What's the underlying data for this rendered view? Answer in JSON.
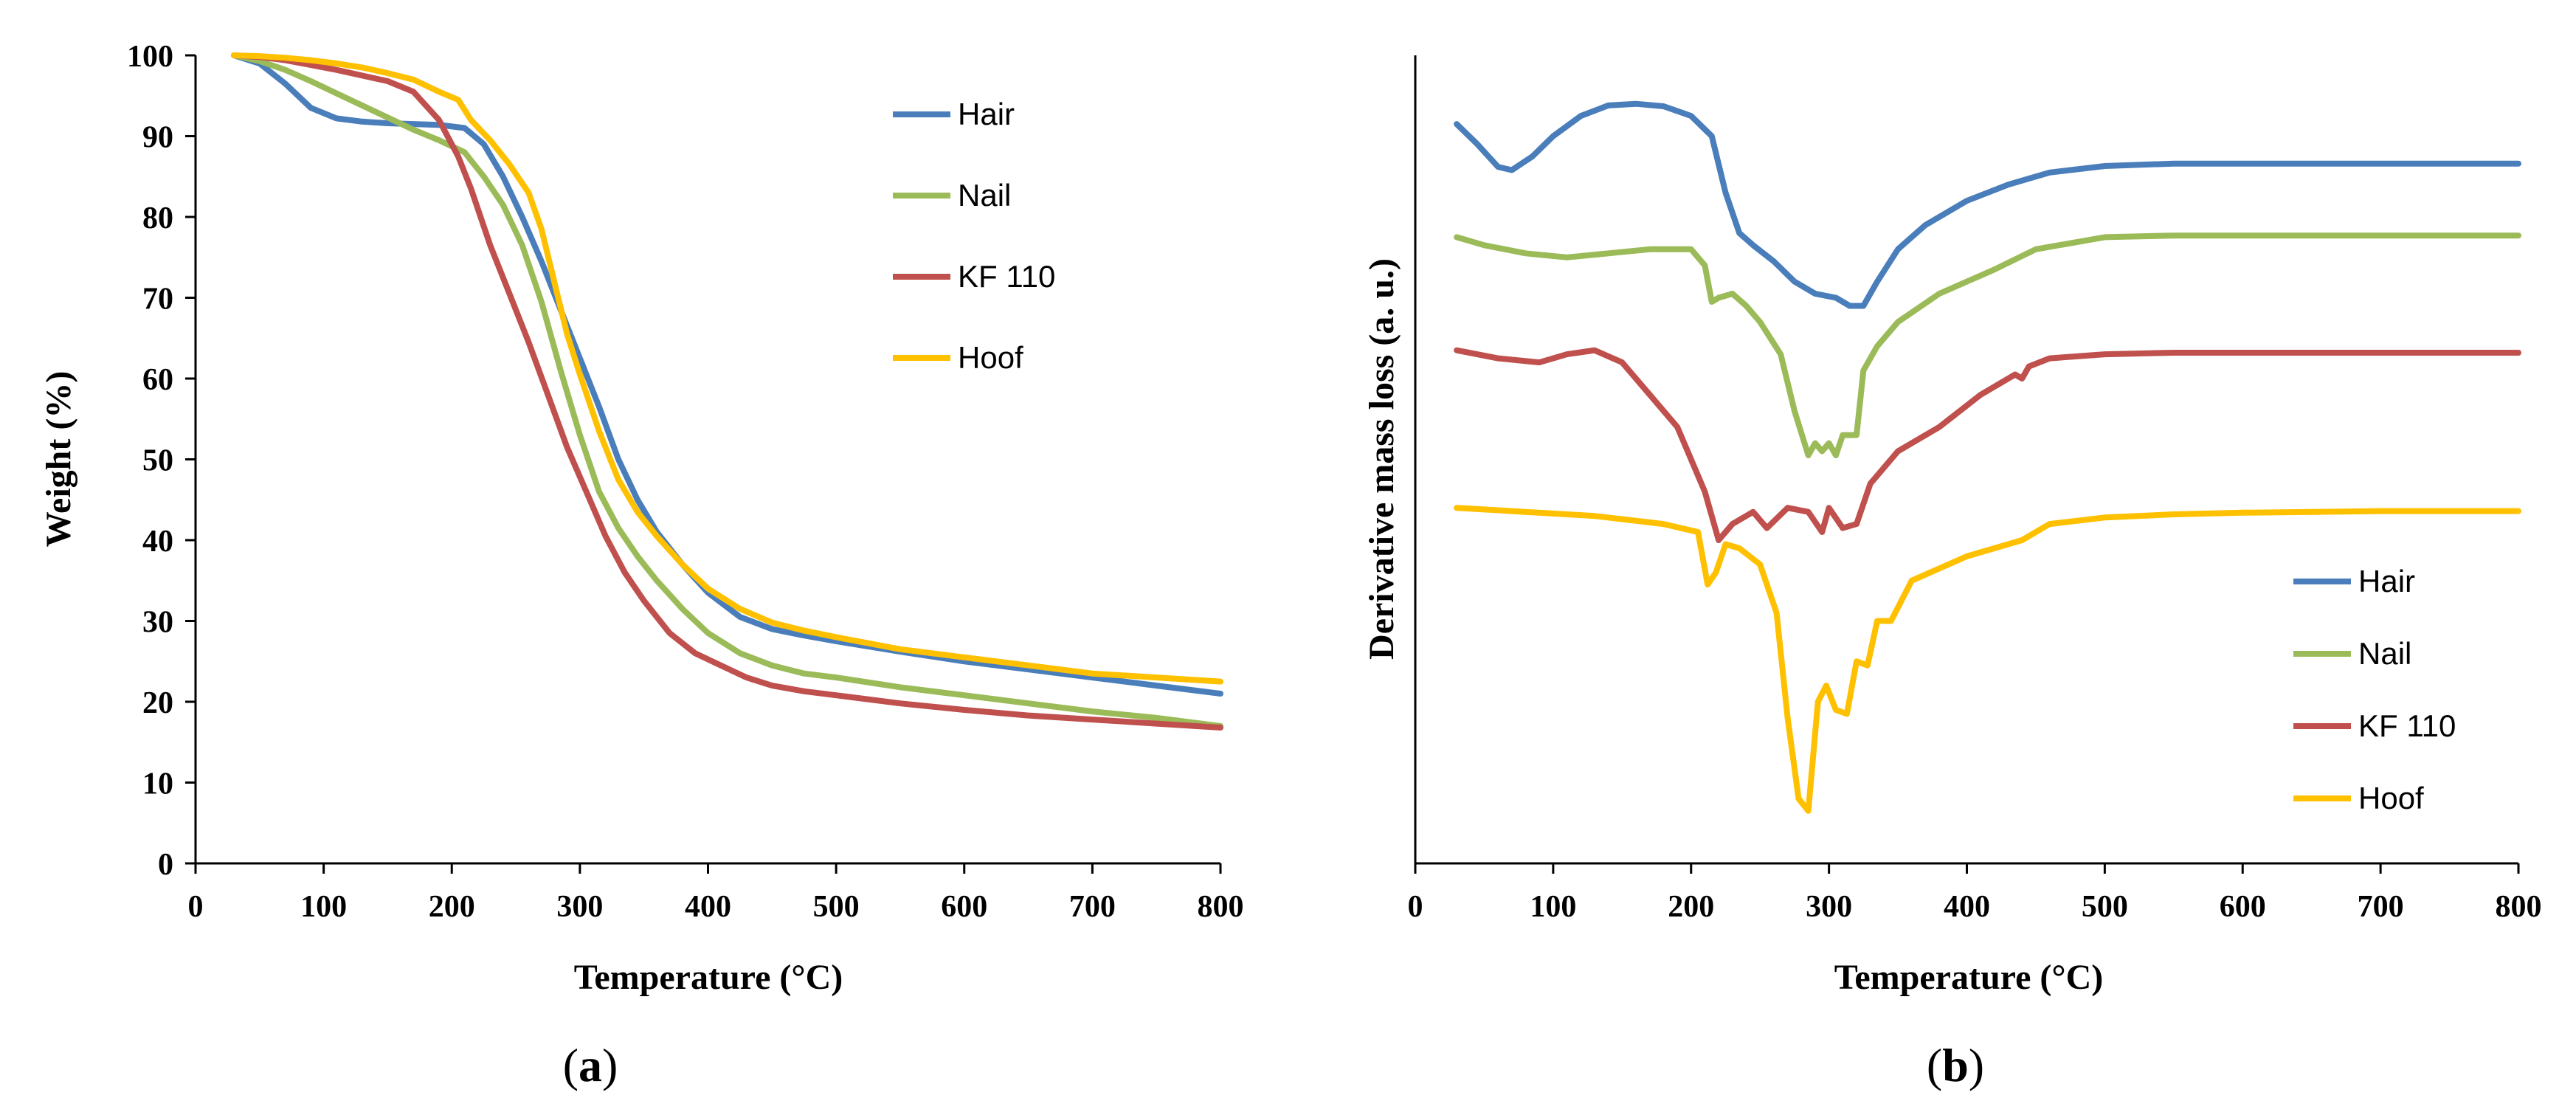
{
  "chart_data": [
    {
      "id": "a",
      "type": "line",
      "caption": "a",
      "xlabel": "Temperature (°C)",
      "ylabel": "Weight (%)",
      "xlim": [
        0,
        800
      ],
      "ylim": [
        0,
        100
      ],
      "xticks": [
        0,
        100,
        200,
        300,
        400,
        500,
        600,
        700,
        800
      ],
      "yticks": [
        0,
        10,
        20,
        30,
        40,
        50,
        60,
        70,
        80,
        90,
        100
      ],
      "legend_position": "top-right",
      "series": [
        {
          "name": "Hair",
          "color": "#4a7ebb",
          "x": [
            30,
            50,
            70,
            90,
            110,
            130,
            150,
            170,
            190,
            210,
            225,
            240,
            255,
            270,
            285,
            300,
            315,
            330,
            345,
            360,
            380,
            400,
            425,
            450,
            475,
            500,
            550,
            600,
            650,
            700,
            750,
            800
          ],
          "y": [
            100,
            99,
            96.5,
            93.5,
            92.2,
            91.8,
            91.6,
            91.5,
            91.4,
            91,
            89,
            85,
            80,
            74.5,
            68.5,
            62.5,
            56.5,
            50,
            45,
            41,
            37,
            33.5,
            30.5,
            29,
            28.2,
            27.5,
            26.2,
            25,
            24,
            23,
            22,
            21
          ]
        },
        {
          "name": "Nail",
          "color": "#9bbb59",
          "x": [
            30,
            50,
            70,
            90,
            110,
            130,
            150,
            170,
            190,
            210,
            225,
            240,
            255,
            270,
            285,
            300,
            315,
            330,
            345,
            360,
            380,
            400,
            425,
            450,
            475,
            500,
            550,
            600,
            650,
            700,
            750,
            800
          ],
          "y": [
            100,
            99.3,
            98.2,
            96.8,
            95.3,
            93.8,
            92.3,
            90.8,
            89.5,
            88,
            85,
            81.5,
            76.5,
            69.5,
            61,
            53,
            46,
            41.5,
            38,
            35,
            31.5,
            28.5,
            26,
            24.5,
            23.5,
            23,
            21.8,
            20.8,
            19.8,
            18.8,
            18,
            17
          ]
        },
        {
          "name": "KF 110",
          "color": "#c0504d",
          "x": [
            30,
            50,
            70,
            90,
            110,
            130,
            150,
            170,
            190,
            205,
            215,
            230,
            245,
            260,
            275,
            290,
            305,
            320,
            335,
            350,
            370,
            390,
            410,
            430,
            450,
            475,
            500,
            550,
            600,
            650,
            700,
            750,
            800
          ],
          "y": [
            100,
            99.8,
            99.4,
            98.8,
            98.2,
            97.5,
            96.8,
            95.5,
            92,
            87.5,
            83.5,
            76.5,
            70.5,
            64.5,
            58,
            51.5,
            46,
            40.5,
            36,
            32.5,
            28.5,
            26,
            24.5,
            23,
            22,
            21.3,
            20.8,
            19.8,
            19,
            18.3,
            17.8,
            17.3,
            16.8
          ]
        },
        {
          "name": "Hoof",
          "color": "#ffc000",
          "x": [
            30,
            50,
            70,
            90,
            110,
            130,
            150,
            170,
            190,
            205,
            215,
            230,
            245,
            260,
            270,
            280,
            290,
            300,
            315,
            330,
            345,
            360,
            380,
            400,
            425,
            450,
            475,
            500,
            550,
            600,
            650,
            700,
            750,
            800
          ],
          "y": [
            100,
            99.9,
            99.7,
            99.4,
            99,
            98.5,
            97.8,
            97,
            95.5,
            94.5,
            92,
            89.5,
            86.5,
            83,
            78.5,
            72,
            65.5,
            60.5,
            53.5,
            47.5,
            43.5,
            40.5,
            37,
            34,
            31.5,
            29.8,
            28.8,
            28,
            26.5,
            25.5,
            24.5,
            23.5,
            23,
            22.5
          ]
        }
      ]
    },
    {
      "id": "b",
      "type": "line",
      "caption": "b",
      "xlabel": "Temperature (°C)",
      "ylabel": "Derivative mass loss (a. u.)",
      "xlim": [
        0,
        800
      ],
      "ylim": [
        0,
        1
      ],
      "xticks": [
        0,
        100,
        200,
        300,
        400,
        500,
        600,
        700,
        800
      ],
      "yticks": [],
      "legend_position": "bottom-right",
      "series": [
        {
          "name": "Hair",
          "color": "#4a7ebb",
          "x": [
            30,
            45,
            60,
            70,
            85,
            100,
            120,
            140,
            160,
            180,
            200,
            215,
            225,
            235,
            245,
            260,
            275,
            290,
            305,
            315,
            325,
            335,
            350,
            370,
            400,
            430,
            460,
            500,
            550,
            600,
            700,
            800
          ],
          "y": [
            0.915,
            0.89,
            0.862,
            0.858,
            0.875,
            0.9,
            0.925,
            0.938,
            0.94,
            0.937,
            0.925,
            0.9,
            0.83,
            0.78,
            0.765,
            0.745,
            0.72,
            0.705,
            0.7,
            0.69,
            0.69,
            0.72,
            0.76,
            0.79,
            0.82,
            0.84,
            0.855,
            0.863,
            0.866,
            0.866,
            0.866,
            0.866
          ]
        },
        {
          "name": "Nail",
          "color": "#9bbb59",
          "x": [
            30,
            50,
            80,
            110,
            140,
            170,
            200,
            210,
            215,
            220,
            230,
            240,
            250,
            265,
            275,
            285,
            290,
            295,
            300,
            305,
            310,
            320,
            325,
            335,
            350,
            380,
            420,
            450,
            500,
            550,
            600,
            700,
            800
          ],
          "y": [
            0.775,
            0.765,
            0.755,
            0.75,
            0.755,
            0.76,
            0.76,
            0.74,
            0.695,
            0.7,
            0.705,
            0.69,
            0.67,
            0.63,
            0.56,
            0.505,
            0.52,
            0.51,
            0.52,
            0.505,
            0.53,
            0.53,
            0.61,
            0.64,
            0.67,
            0.705,
            0.735,
            0.76,
            0.775,
            0.777,
            0.777,
            0.777,
            0.777
          ]
        },
        {
          "name": "KF 110",
          "color": "#c0504d",
          "x": [
            30,
            60,
            90,
            110,
            130,
            150,
            170,
            190,
            210,
            220,
            230,
            245,
            255,
            270,
            285,
            295,
            300,
            310,
            320,
            330,
            350,
            380,
            410,
            435,
            440,
            445,
            460,
            500,
            550,
            600,
            700,
            800
          ],
          "y": [
            0.635,
            0.625,
            0.62,
            0.63,
            0.635,
            0.62,
            0.58,
            0.54,
            0.46,
            0.4,
            0.42,
            0.435,
            0.415,
            0.44,
            0.435,
            0.41,
            0.44,
            0.415,
            0.42,
            0.47,
            0.51,
            0.54,
            0.58,
            0.605,
            0.6,
            0.615,
            0.625,
            0.63,
            0.632,
            0.632,
            0.632,
            0.632
          ]
        },
        {
          "name": "Hoof",
          "color": "#ffc000",
          "x": [
            30,
            80,
            130,
            180,
            205,
            212,
            218,
            225,
            235,
            250,
            262,
            270,
            278,
            285,
            292,
            298,
            305,
            313,
            320,
            328,
            335,
            345,
            360,
            400,
            440,
            460,
            500,
            550,
            600,
            700,
            800
          ],
          "y": [
            0.44,
            0.435,
            0.43,
            0.42,
            0.41,
            0.345,
            0.36,
            0.395,
            0.39,
            0.37,
            0.31,
            0.18,
            0.08,
            0.065,
            0.2,
            0.22,
            0.19,
            0.185,
            0.25,
            0.245,
            0.3,
            0.3,
            0.35,
            0.38,
            0.4,
            0.42,
            0.428,
            0.432,
            0.434,
            0.436,
            0.436
          ]
        }
      ]
    }
  ]
}
